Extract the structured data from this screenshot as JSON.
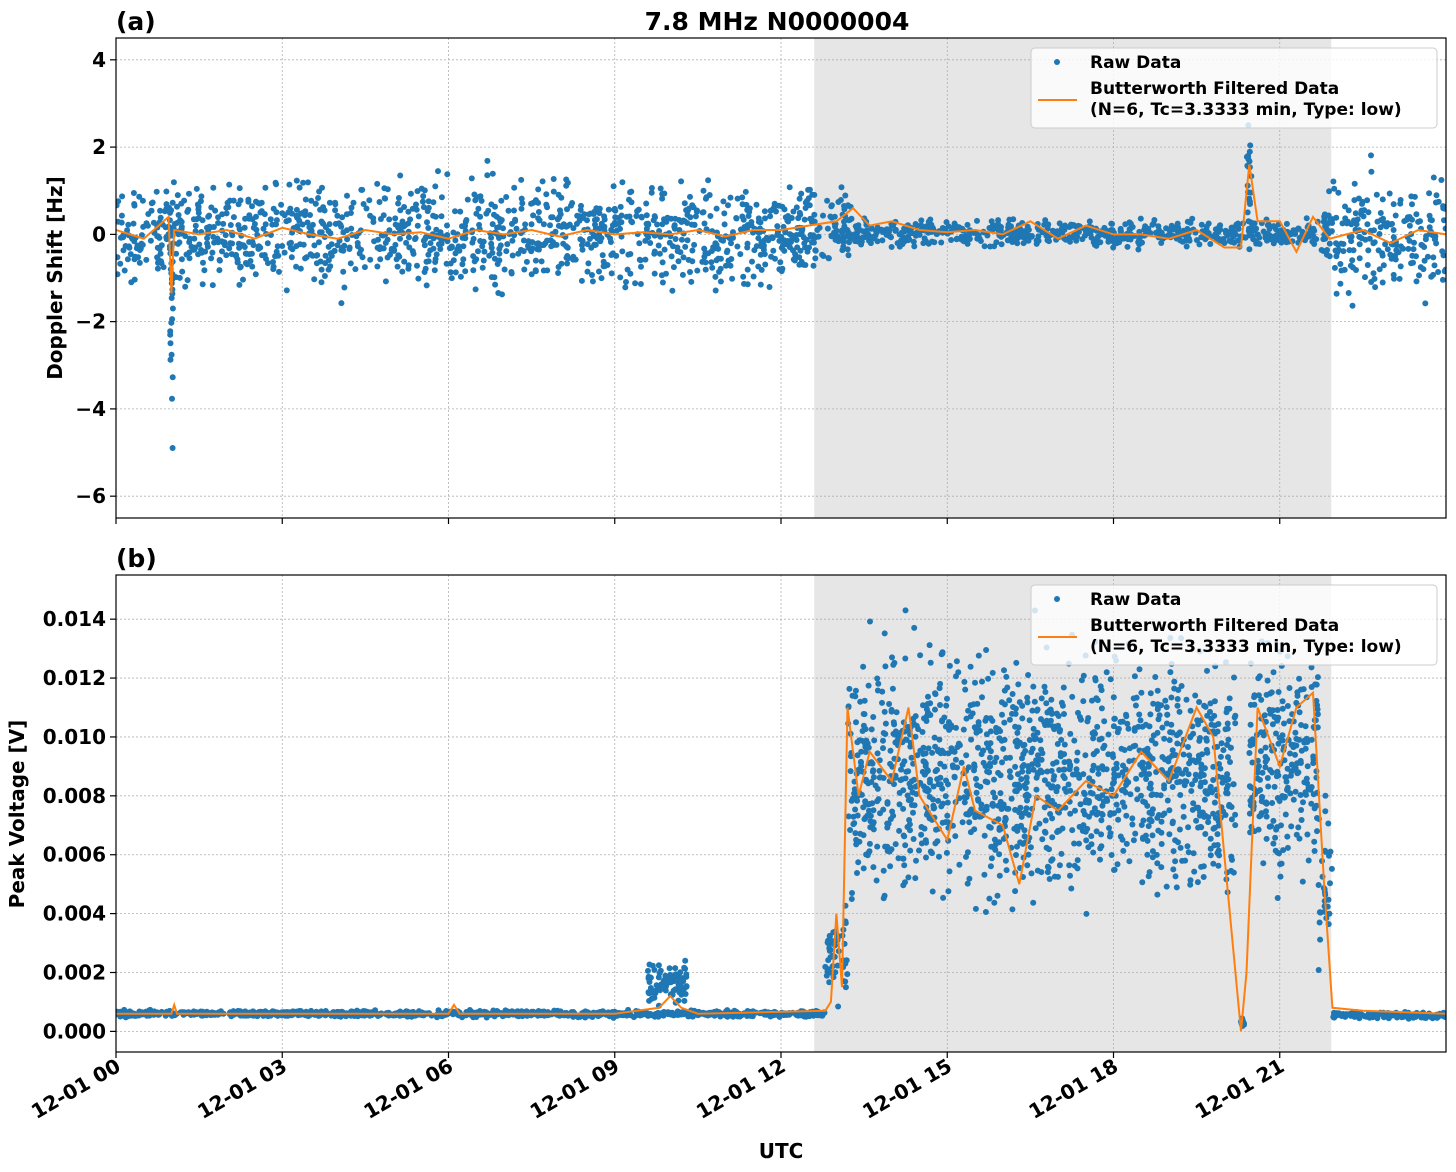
{
  "title": "7.8 MHz N0000004",
  "chart_data": [
    {
      "type": "scatter",
      "panel_label": "(a)",
      "ylabel": "Doppler Shift [Hz]",
      "xlabel": "",
      "xlim": [
        0,
        24
      ],
      "ylim": [
        -6.5,
        4.5
      ],
      "yticks": [
        4,
        2,
        0,
        -2,
        -4,
        -6
      ],
      "ytick_labels": [
        "4",
        "2",
        "0",
        "−2",
        "−4",
        "−6"
      ],
      "grid": true,
      "shaded_region_hours": [
        12.6,
        21.93
      ],
      "legend": {
        "placement": "top-right",
        "entries": [
          "Raw Data",
          "Butterworth Filtered Data",
          "(N=6, Tc=3.3333 min, Type: low)"
        ]
      },
      "colors": {
        "raw": "#1f77b4",
        "filtered": "#ff7f0e",
        "shade": "#e6e6e6"
      },
      "raw_data_bands": [
        {
          "x": [
            0,
            12.9
          ],
          "y": [
            -1.6,
            1.6
          ],
          "per_hour": 90
        },
        {
          "x": [
            0,
            12.9
          ],
          "y": [
            -2.4,
            2.3
          ],
          "per_hour": 6
        },
        {
          "x": [
            0.97,
            1.03
          ],
          "y": [
            -6.0,
            4.0
          ],
          "per_hour": 500
        },
        {
          "x": [
            12.9,
            13.3
          ],
          "y": [
            -0.9,
            1.3
          ],
          "per_hour": 120
        },
        {
          "x": [
            13.3,
            21.7
          ],
          "y": [
            -0.4,
            0.45
          ],
          "per_hour": 70
        },
        {
          "x": [
            20.4,
            20.5
          ],
          "y": [
            -0.3,
            2.7
          ],
          "per_hour": 200
        },
        {
          "x": [
            21.75,
            24
          ],
          "y": [
            -1.7,
            1.6
          ],
          "per_hour": 90
        },
        {
          "x": [
            21.75,
            24
          ],
          "y": [
            -2.6,
            2.5
          ],
          "per_hour": 6
        }
      ],
      "filtered": {
        "x": [
          0,
          0.5,
          0.95,
          1.0,
          1.05,
          1.5,
          2,
          2.5,
          3,
          3.5,
          4,
          4.5,
          5,
          5.5,
          6,
          6.5,
          7,
          7.5,
          8,
          8.5,
          9,
          9.5,
          10,
          10.5,
          11,
          11.5,
          12,
          12.5,
          13,
          13.3,
          13.6,
          14,
          14.5,
          15,
          15.5,
          16,
          16.5,
          17,
          17.5,
          18,
          18.5,
          19,
          19.5,
          20,
          20.3,
          20.45,
          20.6,
          21,
          21.3,
          21.6,
          21.9,
          22.5,
          23,
          23.5,
          24
        ],
        "y": [
          0.1,
          -0.1,
          0.4,
          -1.35,
          0.1,
          0,
          0.1,
          -0.1,
          0.15,
          0,
          -0.1,
          0.1,
          0,
          0.05,
          -0.1,
          0.1,
          0,
          0.1,
          -0.05,
          0.1,
          0,
          0.05,
          0,
          0.1,
          -0.05,
          0.1,
          0.1,
          0.2,
          0.3,
          0.6,
          0.2,
          0.3,
          0.1,
          0.05,
          0.1,
          0,
          0.3,
          -0.1,
          0.2,
          0,
          0,
          -0.1,
          0.1,
          -0.3,
          -0.3,
          1.6,
          0.3,
          0.3,
          -0.4,
          0.4,
          -0.1,
          0.1,
          -0.2,
          0.1,
          0
        ]
      }
    },
    {
      "type": "scatter",
      "panel_label": "(b)",
      "ylabel": "Peak Voltage [V]",
      "xlabel": "UTC",
      "xlim": [
        0,
        24
      ],
      "ylim": [
        -0.0007,
        0.0155
      ],
      "yticks": [
        0.014,
        0.012,
        0.01,
        0.008,
        0.006,
        0.004,
        0.002,
        0.0
      ],
      "ytick_labels": [
        "0.014",
        "0.012",
        "0.010",
        "0.008",
        "0.006",
        "0.004",
        "0.002",
        "0.000"
      ],
      "xticks": [
        0,
        3,
        6,
        9,
        12,
        15,
        18,
        21
      ],
      "xtick_labels": [
        "12-01 00",
        "12-01 03",
        "12-01 06",
        "12-01 09",
        "12-01 12",
        "12-01 15",
        "12-01 18",
        "12-01 21"
      ],
      "grid": true,
      "shaded_region_hours": [
        12.6,
        21.93
      ],
      "legend": {
        "placement": "top-right",
        "entries": [
          "Raw Data",
          "Butterworth Filtered Data",
          "(N=6, Tc=3.3333 min, Type: low)"
        ]
      },
      "raw_data_bands": [
        {
          "x": [
            0,
            12.8
          ],
          "y": [
            0.00045,
            0.00075
          ],
          "per_hour": 80
        },
        {
          "x": [
            9.6,
            10.3
          ],
          "y": [
            0.0006,
            0.0026
          ],
          "per_hour": 120
        },
        {
          "x": [
            12.8,
            13.2
          ],
          "y": [
            0.0007,
            0.0045
          ],
          "per_hour": 120
        },
        {
          "x": [
            13.2,
            20.2
          ],
          "y": [
            0.003,
            0.0145
          ],
          "per_hour": 190
        },
        {
          "x": [
            20.3,
            20.36
          ],
          "y": [
            0.0,
            0.0005
          ],
          "per_hour": 200
        },
        {
          "x": [
            20.45,
            21.7
          ],
          "y": [
            0.004,
            0.0142
          ],
          "per_hour": 190
        },
        {
          "x": [
            21.7,
            21.95
          ],
          "y": [
            0.0008,
            0.009
          ],
          "per_hour": 120
        },
        {
          "x": [
            21.95,
            24
          ],
          "y": [
            0.0004,
            0.0007
          ],
          "per_hour": 80
        }
      ],
      "filtered": {
        "x": [
          0,
          1,
          1.05,
          1.1,
          3,
          6,
          6.1,
          6.2,
          9,
          9.8,
          10,
          10.2,
          10.5,
          12.8,
          12.9,
          13.0,
          13.1,
          13.2,
          13.4,
          13.6,
          14,
          14.3,
          14.5,
          15,
          15.3,
          15.5,
          16,
          16.3,
          16.6,
          17,
          17.5,
          18,
          18.5,
          19,
          19.5,
          19.8,
          20.0,
          20.3,
          20.4,
          20.6,
          21.0,
          21.3,
          21.6,
          21.8,
          21.95,
          22.5,
          24
        ],
        "y": [
          0.0006,
          0.0006,
          0.0009,
          0.0006,
          0.0006,
          0.0006,
          0.0009,
          0.0006,
          0.0006,
          0.0008,
          0.0012,
          0.0008,
          0.0006,
          0.0007,
          0.001,
          0.004,
          0.0015,
          0.011,
          0.008,
          0.0095,
          0.0085,
          0.011,
          0.008,
          0.0065,
          0.009,
          0.0075,
          0.007,
          0.005,
          0.008,
          0.0075,
          0.0085,
          0.008,
          0.0095,
          0.0085,
          0.011,
          0.01,
          0.006,
          0.0,
          0.002,
          0.011,
          0.009,
          0.011,
          0.0115,
          0.005,
          0.0008,
          0.0007,
          0.0006
        ]
      }
    }
  ]
}
